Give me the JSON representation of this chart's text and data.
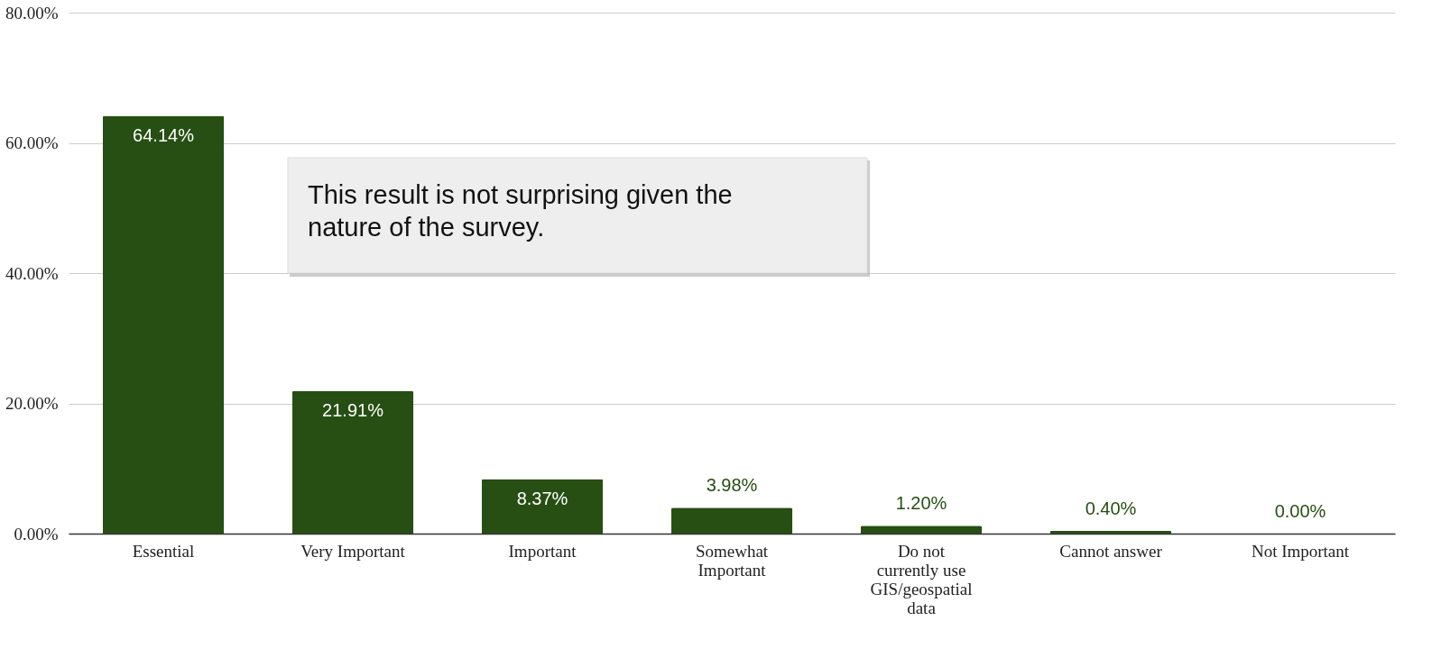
{
  "chart_data": {
    "type": "bar",
    "categories": [
      "Essential",
      "Very Important",
      "Important",
      "Somewhat Important",
      "Do not currently use GIS/geospatial data",
      "Cannot answer",
      "Not Important"
    ],
    "values": [
      64.14,
      21.91,
      8.37,
      3.98,
      1.2,
      0.4,
      0.0
    ],
    "value_labels": [
      "64.14%",
      "21.91%",
      "8.37%",
      "3.98%",
      "1.20%",
      "0.40%",
      "0.00%"
    ],
    "color": "#274e13",
    "ylim": [
      0,
      80
    ],
    "yticks": [
      {
        "value": 0,
        "label": "0.00%"
      },
      {
        "value": 20,
        "label": "20.00%"
      },
      {
        "value": 40,
        "label": "40.00%"
      },
      {
        "value": 60,
        "label": "60.00%"
      },
      {
        "value": 80,
        "label": "80.00%"
      }
    ],
    "grid": "y",
    "annotations": [
      "This result is not surprising given the nature of the survey."
    ]
  }
}
